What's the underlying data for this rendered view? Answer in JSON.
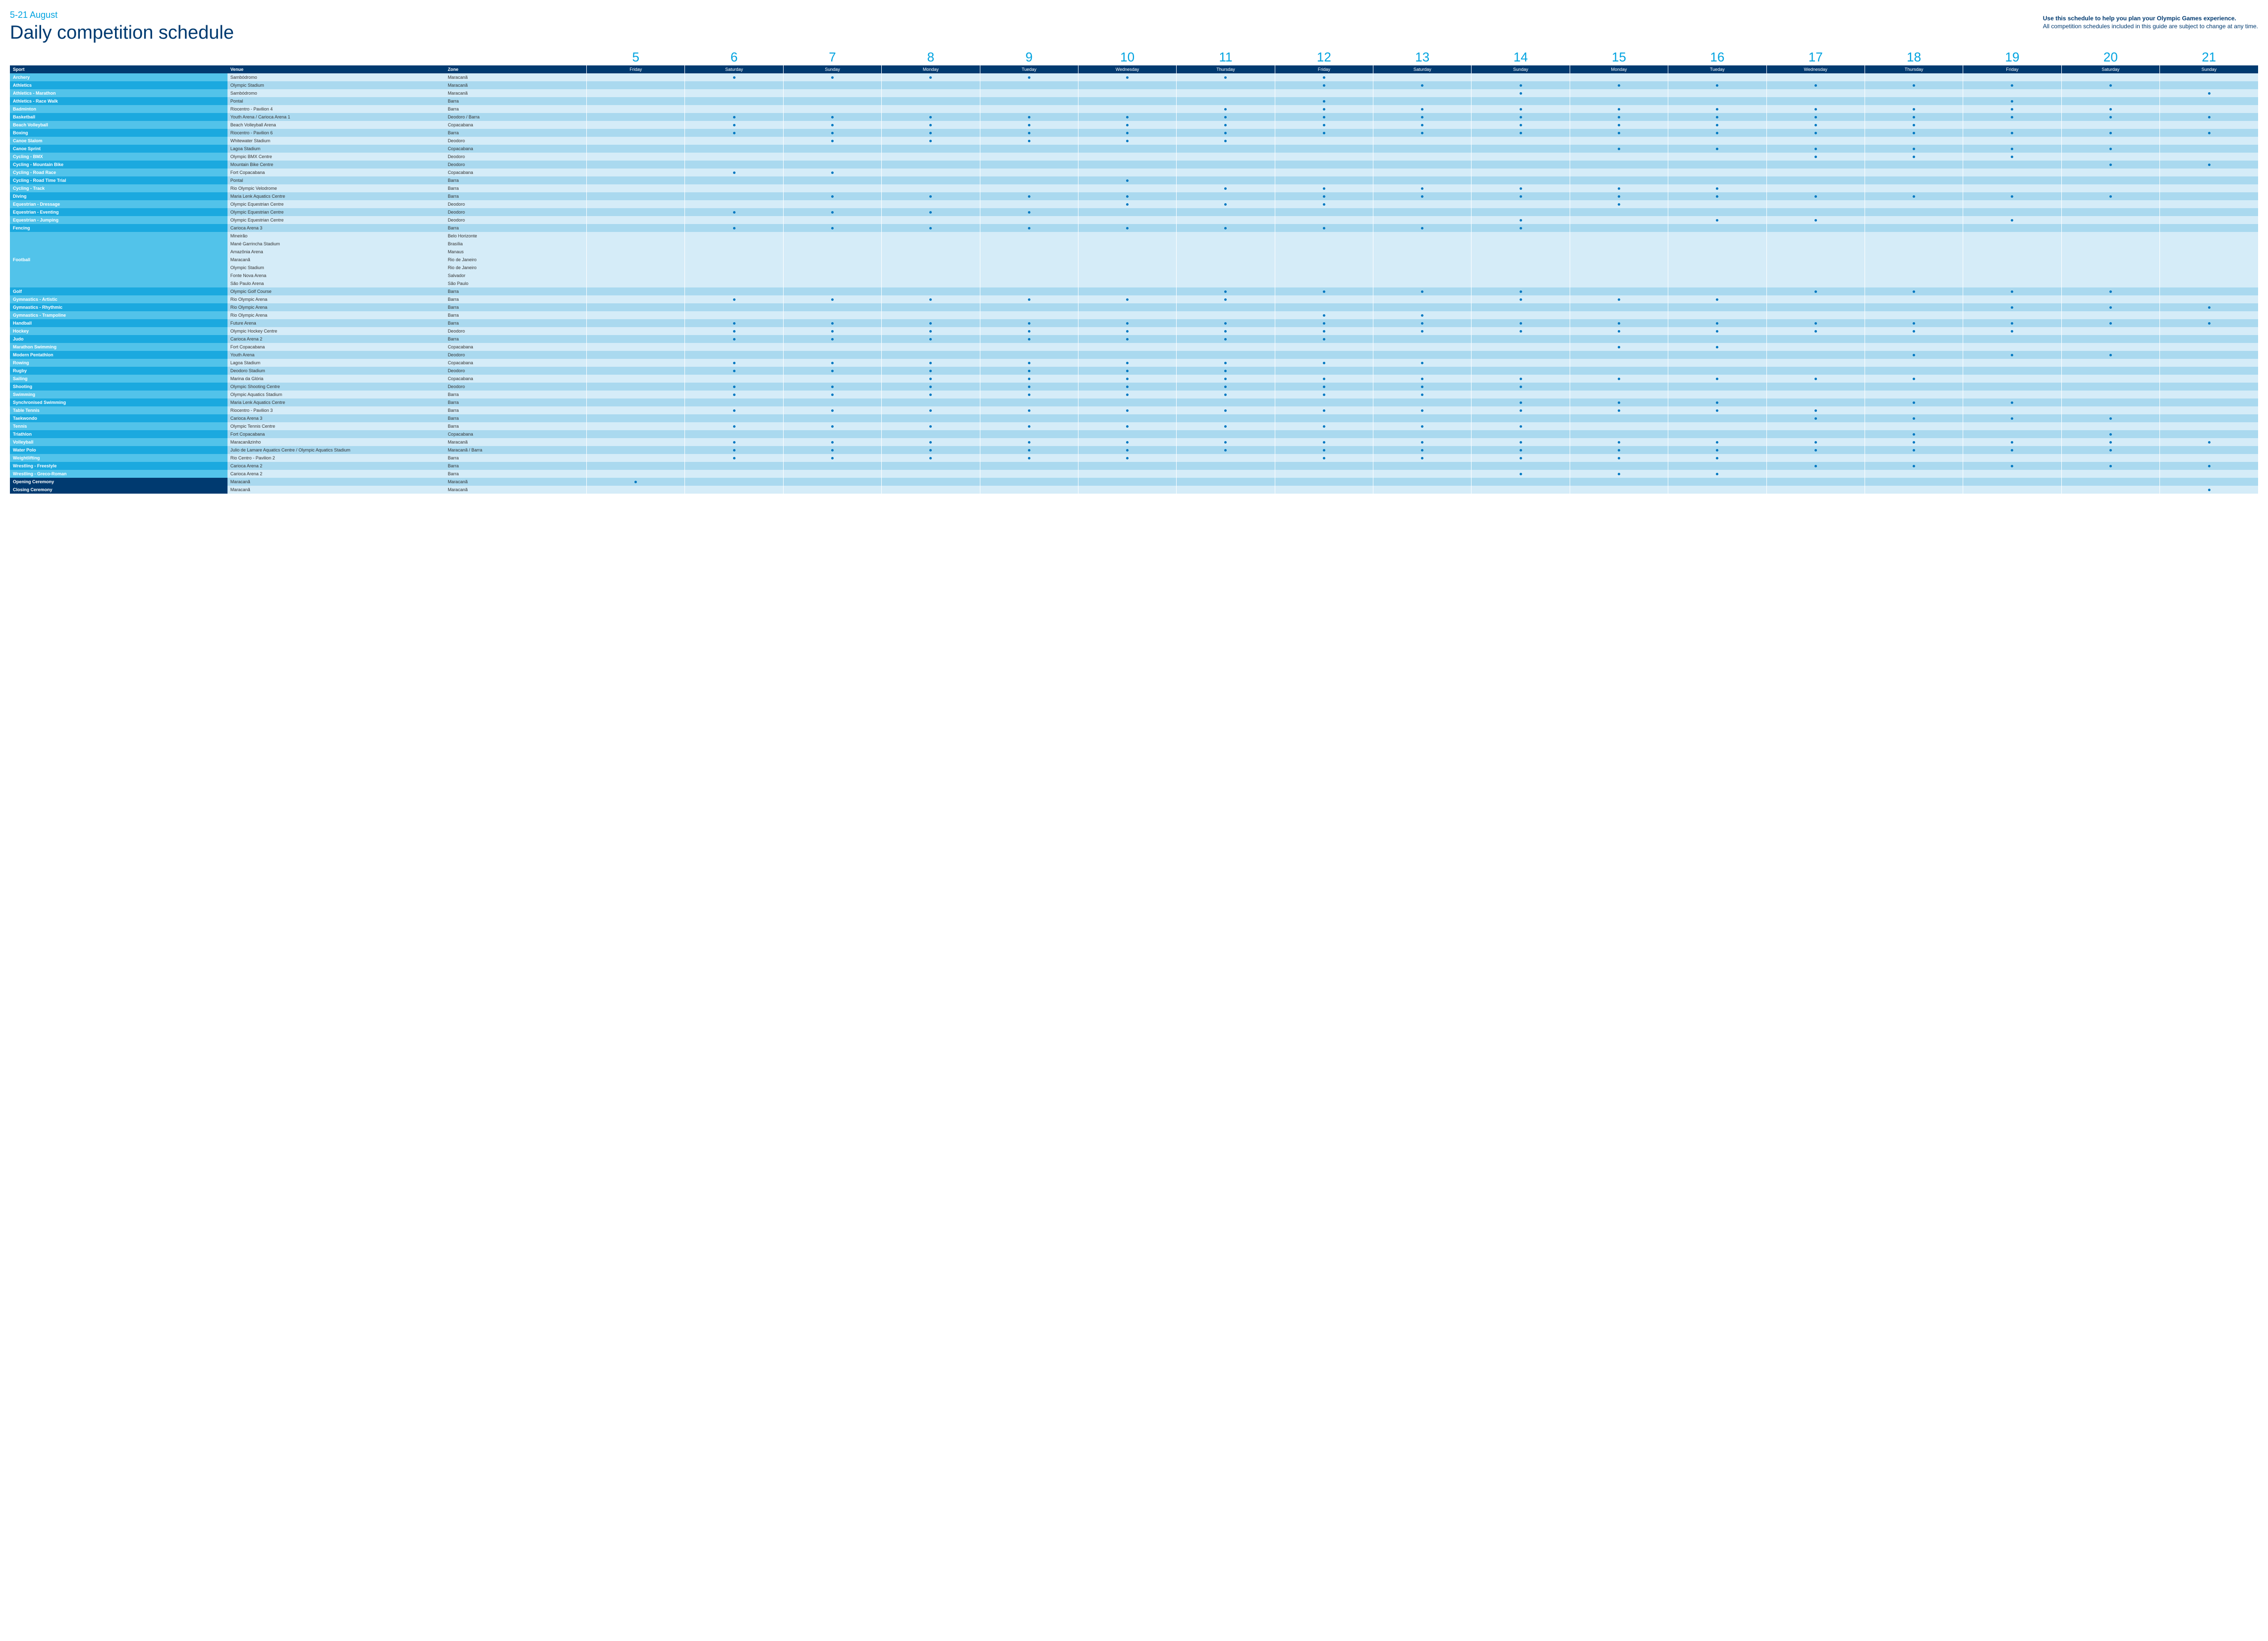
{
  "header": {
    "dateRange": "5-21 August",
    "title": "Daily competition schedule",
    "helpText1": "Use this schedule to help you plan your Olympic Games experience.",
    "helpText2": "All competition schedules included in this guide are subject to change at any time."
  },
  "columns": {
    "sport": "Sport",
    "venue": "Venue",
    "zone": "Zone"
  },
  "days": [
    {
      "num": "5",
      "name": "Friday"
    },
    {
      "num": "6",
      "name": "Saturday"
    },
    {
      "num": "7",
      "name": "Sunday"
    },
    {
      "num": "8",
      "name": "Monday"
    },
    {
      "num": "9",
      "name": "Tueday"
    },
    {
      "num": "10",
      "name": "Wednesday"
    },
    {
      "num": "11",
      "name": "Thursday"
    },
    {
      "num": "12",
      "name": "Friday"
    },
    {
      "num": "13",
      "name": "Saturday"
    },
    {
      "num": "14",
      "name": "Sunday"
    },
    {
      "num": "15",
      "name": "Monday"
    },
    {
      "num": "16",
      "name": "Tueday"
    },
    {
      "num": "17",
      "name": "Wednesday"
    },
    {
      "num": "18",
      "name": "Thursday"
    },
    {
      "num": "19",
      "name": "Friday"
    },
    {
      "num": "20",
      "name": "Saturday"
    },
    {
      "num": "21",
      "name": "Sunday"
    }
  ],
  "rows": [
    {
      "sport": "Archery",
      "venue": "Sambódromo",
      "zone": "Maracanã",
      "dots": [
        0,
        1,
        1,
        1,
        1,
        1,
        1,
        1,
        0,
        0,
        0,
        0,
        0,
        0,
        0,
        0,
        0
      ]
    },
    {
      "sport": "Athletics",
      "venue": "Olympic Stadium",
      "zone": "Maracanã",
      "dots": [
        0,
        0,
        0,
        0,
        0,
        0,
        0,
        1,
        1,
        1,
        1,
        1,
        1,
        1,
        1,
        1,
        0
      ]
    },
    {
      "sport": "Athletics - Marathon",
      "venue": "Sambódromo",
      "zone": "Maracanã",
      "dots": [
        0,
        0,
        0,
        0,
        0,
        0,
        0,
        0,
        0,
        1,
        0,
        0,
        0,
        0,
        0,
        0,
        1
      ]
    },
    {
      "sport": "Athletics - Race Walk",
      "venue": "Pontal",
      "zone": "Barra",
      "dots": [
        0,
        0,
        0,
        0,
        0,
        0,
        0,
        1,
        0,
        0,
        0,
        0,
        0,
        0,
        1,
        0,
        0
      ]
    },
    {
      "sport": "Badminton",
      "venue": "Riocentro - Pavilion 4",
      "zone": "Barra",
      "dots": [
        0,
        0,
        0,
        0,
        0,
        0,
        1,
        1,
        1,
        1,
        1,
        1,
        1,
        1,
        1,
        1,
        0
      ]
    },
    {
      "sport": "Basketball",
      "venue": "Youth Arena / Carioca Arena 1",
      "zone": "Deodoro / Barra",
      "dots": [
        0,
        1,
        1,
        1,
        1,
        1,
        1,
        1,
        1,
        1,
        1,
        1,
        1,
        1,
        1,
        1,
        1
      ]
    },
    {
      "sport": "Beach Volleyball",
      "venue": "Beach Volleyball Arena",
      "zone": "Copacabana",
      "dots": [
        0,
        1,
        1,
        1,
        1,
        1,
        1,
        1,
        1,
        1,
        1,
        1,
        1,
        1,
        0,
        0,
        0
      ]
    },
    {
      "sport": "Boxing",
      "venue": "Riocentro - Pavilion 6",
      "zone": "Barra",
      "dots": [
        0,
        1,
        1,
        1,
        1,
        1,
        1,
        1,
        1,
        1,
        1,
        1,
        1,
        1,
        1,
        1,
        1
      ]
    },
    {
      "sport": "Canoe Slalom",
      "venue": "Whitewater Stadium",
      "zone": "Deodoro",
      "dots": [
        0,
        0,
        1,
        1,
        1,
        1,
        1,
        0,
        0,
        0,
        0,
        0,
        0,
        0,
        0,
        0,
        0
      ]
    },
    {
      "sport": "Canoe Sprint",
      "venue": "Lagoa Stadium",
      "zone": "Copacabana",
      "dots": [
        0,
        0,
        0,
        0,
        0,
        0,
        0,
        0,
        0,
        0,
        1,
        1,
        1,
        1,
        1,
        1,
        0
      ]
    },
    {
      "sport": "Cycling - BMX",
      "venue": "Olympic BMX Centre",
      "zone": "Deodoro",
      "dots": [
        0,
        0,
        0,
        0,
        0,
        0,
        0,
        0,
        0,
        0,
        0,
        0,
        1,
        1,
        1,
        0,
        0
      ]
    },
    {
      "sport": "Cycling - Mountain Bike",
      "venue": "Mountain Bike Centre",
      "zone": "Deodoro",
      "dots": [
        0,
        0,
        0,
        0,
        0,
        0,
        0,
        0,
        0,
        0,
        0,
        0,
        0,
        0,
        0,
        1,
        1
      ]
    },
    {
      "sport": "Cycling - Road Race",
      "venue": "Fort Copacabana",
      "zone": "Copacabana",
      "dots": [
        0,
        1,
        1,
        0,
        0,
        0,
        0,
        0,
        0,
        0,
        0,
        0,
        0,
        0,
        0,
        0,
        0
      ]
    },
    {
      "sport": "Cycling - Road Time Trial",
      "venue": "Pontal",
      "zone": "Barra",
      "dots": [
        0,
        0,
        0,
        0,
        0,
        1,
        0,
        0,
        0,
        0,
        0,
        0,
        0,
        0,
        0,
        0,
        0
      ]
    },
    {
      "sport": "Cycling - Track",
      "venue": "Rio Olympic Velodrome",
      "zone": "Barra",
      "dots": [
        0,
        0,
        0,
        0,
        0,
        0,
        1,
        1,
        1,
        1,
        1,
        1,
        0,
        0,
        0,
        0,
        0
      ]
    },
    {
      "sport": "Diving",
      "venue": "Maria Lenk Aquatics Centre",
      "zone": "Barra",
      "dots": [
        0,
        0,
        1,
        1,
        1,
        1,
        0,
        1,
        1,
        1,
        1,
        1,
        1,
        1,
        1,
        1,
        0
      ]
    },
    {
      "sport": "Equestrian - Dressage",
      "venue": "Olympic Equestrian Centre",
      "zone": "Deodoro",
      "dots": [
        0,
        0,
        0,
        0,
        0,
        1,
        1,
        1,
        0,
        0,
        1,
        0,
        0,
        0,
        0,
        0,
        0
      ]
    },
    {
      "sport": "Equestrian - Eventing",
      "venue": "Olympic Equestrian Centre",
      "zone": "Deodoro",
      "dots": [
        0,
        1,
        1,
        1,
        1,
        0,
        0,
        0,
        0,
        0,
        0,
        0,
        0,
        0,
        0,
        0,
        0
      ]
    },
    {
      "sport": "Equestrian - Jumping",
      "venue": "Olympic Equestrian Centre",
      "zone": "Deodoro",
      "dots": [
        0,
        0,
        0,
        0,
        0,
        0,
        0,
        0,
        0,
        1,
        0,
        1,
        1,
        0,
        1,
        0,
        0
      ]
    },
    {
      "sport": "Fencing",
      "venue": "Carioca Arena 3",
      "zone": "Barra",
      "dots": [
        0,
        1,
        1,
        1,
        1,
        1,
        1,
        1,
        1,
        1,
        0,
        0,
        0,
        0,
        0,
        0,
        0
      ]
    },
    {
      "sport": "",
      "venue": "Mineirão",
      "zone": "Belo Horizonte",
      "dots": [
        0,
        0,
        0,
        0,
        0,
        0,
        0,
        0,
        0,
        0,
        0,
        0,
        0,
        0,
        0,
        0,
        0
      ],
      "group": "Football",
      "first": true
    },
    {
      "sport": "",
      "venue": "Mané Garrincha Stadium",
      "zone": "Brasília",
      "dots": [
        0,
        0,
        0,
        0,
        0,
        0,
        0,
        0,
        0,
        0,
        0,
        0,
        0,
        0,
        0,
        0,
        0
      ],
      "group": "Football"
    },
    {
      "sport": "",
      "venue": "Amazônia Arena",
      "zone": "Manaus",
      "dots": [
        0,
        0,
        0,
        0,
        0,
        0,
        0,
        0,
        0,
        0,
        0,
        0,
        0,
        0,
        0,
        0,
        0
      ],
      "group": "Football"
    },
    {
      "sport": "Football",
      "venue": "Maracanã",
      "zone": "Rio de Janeiro",
      "dots": [
        0,
        0,
        0,
        0,
        0,
        0,
        0,
        0,
        0,
        0,
        0,
        0,
        0,
        0,
        0,
        0,
        0
      ],
      "group": "Football",
      "showLabel": true
    },
    {
      "sport": "",
      "venue": "Olympic Stadium",
      "zone": "Rio de Janeiro",
      "dots": [
        0,
        0,
        0,
        0,
        0,
        0,
        0,
        0,
        0,
        0,
        0,
        0,
        0,
        0,
        0,
        0,
        0
      ],
      "group": "Football"
    },
    {
      "sport": "",
      "venue": "Fonte Nova Arena",
      "zone": "Salvador",
      "dots": [
        0,
        0,
        0,
        0,
        0,
        0,
        0,
        0,
        0,
        0,
        0,
        0,
        0,
        0,
        0,
        0,
        0
      ],
      "group": "Football"
    },
    {
      "sport": "",
      "venue": "São Paulo Arena",
      "zone": "São Paulo",
      "dots": [
        0,
        0,
        0,
        0,
        0,
        0,
        0,
        0,
        0,
        0,
        0,
        0,
        0,
        0,
        0,
        0,
        0
      ],
      "group": "Football",
      "last": true
    },
    {
      "sport": "Golf",
      "venue": "Olympic Golf Course",
      "zone": "Barra",
      "dots": [
        0,
        0,
        0,
        0,
        0,
        0,
        1,
        1,
        1,
        1,
        0,
        0,
        1,
        1,
        1,
        1,
        0
      ]
    },
    {
      "sport": "Gymnastics - Artistic",
      "venue": "Rio Olympic Arena",
      "zone": "Barra",
      "dots": [
        0,
        1,
        1,
        1,
        1,
        1,
        1,
        0,
        0,
        1,
        1,
        1,
        0,
        0,
        0,
        0,
        0
      ]
    },
    {
      "sport": "Gymnastics - Rhythmic",
      "venue": "Rio Olympic Arena",
      "zone": "Barra",
      "dots": [
        0,
        0,
        0,
        0,
        0,
        0,
        0,
        0,
        0,
        0,
        0,
        0,
        0,
        0,
        1,
        1,
        1
      ]
    },
    {
      "sport": "Gymnastics - Trampoline",
      "venue": "Rio Olympic Arena",
      "zone": "Barra",
      "dots": [
        0,
        0,
        0,
        0,
        0,
        0,
        0,
        1,
        1,
        0,
        0,
        0,
        0,
        0,
        0,
        0,
        0
      ]
    },
    {
      "sport": "Handball",
      "venue": "Future Arena",
      "zone": "Barra",
      "dots": [
        0,
        1,
        1,
        1,
        1,
        1,
        1,
        1,
        1,
        1,
        1,
        1,
        1,
        1,
        1,
        1,
        1
      ]
    },
    {
      "sport": "Hockey",
      "venue": "Olympic Hockey Centre",
      "zone": "Deodoro",
      "dots": [
        0,
        1,
        1,
        1,
        1,
        1,
        1,
        1,
        1,
        1,
        1,
        1,
        1,
        1,
        1,
        0,
        0
      ]
    },
    {
      "sport": "Judo",
      "venue": "Carioca Arena 2",
      "zone": "Barra",
      "dots": [
        0,
        1,
        1,
        1,
        1,
        1,
        1,
        1,
        0,
        0,
        0,
        0,
        0,
        0,
        0,
        0,
        0
      ]
    },
    {
      "sport": "Marathon Swimming",
      "venue": "Fort Copacabana",
      "zone": "Copacabana",
      "dots": [
        0,
        0,
        0,
        0,
        0,
        0,
        0,
        0,
        0,
        0,
        1,
        1,
        0,
        0,
        0,
        0,
        0
      ]
    },
    {
      "sport": "Modern Pentathlon",
      "venue": "Youth Arena",
      "zone": "Deodoro",
      "dots": [
        0,
        0,
        0,
        0,
        0,
        0,
        0,
        0,
        0,
        0,
        0,
        0,
        0,
        1,
        1,
        1,
        0
      ]
    },
    {
      "sport": "Rowing",
      "venue": "Lagoa Stadium",
      "zone": "Copacabana",
      "dots": [
        0,
        1,
        1,
        1,
        1,
        1,
        1,
        1,
        1,
        0,
        0,
        0,
        0,
        0,
        0,
        0,
        0
      ]
    },
    {
      "sport": "Rugby",
      "venue": "Deodoro Stadium",
      "zone": "Deodoro",
      "dots": [
        0,
        1,
        1,
        1,
        1,
        1,
        1,
        0,
        0,
        0,
        0,
        0,
        0,
        0,
        0,
        0,
        0
      ]
    },
    {
      "sport": "Sailing",
      "venue": "Marina da Glória",
      "zone": "Copacabana",
      "dots": [
        0,
        0,
        0,
        1,
        1,
        1,
        1,
        1,
        1,
        1,
        1,
        1,
        1,
        1,
        0,
        0,
        0
      ]
    },
    {
      "sport": "Shooting",
      "venue": "Olympic Shooting Centre",
      "zone": "Deodoro",
      "dots": [
        0,
        1,
        1,
        1,
        1,
        1,
        1,
        1,
        1,
        1,
        0,
        0,
        0,
        0,
        0,
        0,
        0
      ]
    },
    {
      "sport": "Swimming",
      "venue": "Olympic Aquatics Stadium",
      "zone": "Barra",
      "dots": [
        0,
        1,
        1,
        1,
        1,
        1,
        1,
        1,
        1,
        0,
        0,
        0,
        0,
        0,
        0,
        0,
        0
      ]
    },
    {
      "sport": "Synchronised Swimming",
      "venue": "Maria Lenk Aquatics Centre",
      "zone": "Barra",
      "dots": [
        0,
        0,
        0,
        0,
        0,
        0,
        0,
        0,
        0,
        1,
        1,
        1,
        0,
        1,
        1,
        0,
        0
      ]
    },
    {
      "sport": "Table Tennis",
      "venue": "Riocentro - Pavilion 3",
      "zone": "Barra",
      "dots": [
        0,
        1,
        1,
        1,
        1,
        1,
        1,
        1,
        1,
        1,
        1,
        1,
        1,
        0,
        0,
        0,
        0
      ]
    },
    {
      "sport": "Taekwondo",
      "venue": "Carioca Arena 3",
      "zone": "Barra",
      "dots": [
        0,
        0,
        0,
        0,
        0,
        0,
        0,
        0,
        0,
        0,
        0,
        0,
        1,
        1,
        1,
        1,
        0
      ]
    },
    {
      "sport": "Tennis",
      "venue": "Olympic Tennis Centre",
      "zone": "Barra",
      "dots": [
        0,
        1,
        1,
        1,
        1,
        1,
        1,
        1,
        1,
        1,
        0,
        0,
        0,
        0,
        0,
        0,
        0
      ]
    },
    {
      "sport": "Triathlon",
      "venue": "Fort Copacabana",
      "zone": "Copacabana",
      "dots": [
        0,
        0,
        0,
        0,
        0,
        0,
        0,
        0,
        0,
        0,
        0,
        0,
        0,
        1,
        0,
        1,
        0
      ]
    },
    {
      "sport": "Volleyball",
      "venue": "Maracanãzinho",
      "zone": "Maracanã",
      "dots": [
        0,
        1,
        1,
        1,
        1,
        1,
        1,
        1,
        1,
        1,
        1,
        1,
        1,
        1,
        1,
        1,
        1
      ]
    },
    {
      "sport": "Water Polo",
      "venue": "Julio de Lamare Aquatics Centre / Olympic Aquatics Stadium",
      "zone": "Maracanã / Barra",
      "dots": [
        0,
        1,
        1,
        1,
        1,
        1,
        1,
        1,
        1,
        1,
        1,
        1,
        1,
        1,
        1,
        1,
        0
      ]
    },
    {
      "sport": "Weightlifting",
      "venue": "Rio Centro - Pavilion 2",
      "zone": "Barra",
      "dots": [
        0,
        1,
        1,
        1,
        1,
        1,
        0,
        1,
        1,
        1,
        1,
        1,
        0,
        0,
        0,
        0,
        0
      ]
    },
    {
      "sport": "Wrestling - Freestyle",
      "venue": "Carioca Arena 2",
      "zone": "Barra",
      "dots": [
        0,
        0,
        0,
        0,
        0,
        0,
        0,
        0,
        0,
        0,
        0,
        0,
        1,
        1,
        1,
        1,
        1
      ]
    },
    {
      "sport": "Wrestling - Greco-Roman",
      "venue": "Carioca Arena 2",
      "zone": "Barra",
      "dots": [
        0,
        0,
        0,
        0,
        0,
        0,
        0,
        0,
        0,
        1,
        1,
        1,
        0,
        0,
        0,
        0,
        0
      ]
    },
    {
      "sport": "Opening Ceremony",
      "venue": "Maracanã",
      "zone": "Maracanã",
      "dots": [
        1,
        0,
        0,
        0,
        0,
        0,
        0,
        0,
        0,
        0,
        0,
        0,
        0,
        0,
        0,
        0,
        0
      ],
      "ceremony": true
    },
    {
      "sport": "Closing Ceremony",
      "venue": "Maracanã",
      "zone": "Maracanã",
      "dots": [
        0,
        0,
        0,
        0,
        0,
        0,
        0,
        0,
        0,
        0,
        0,
        0,
        0,
        0,
        0,
        0,
        1
      ],
      "ceremony": true
    }
  ],
  "styling": {
    "colors": {
      "darkBlue": "#003a70",
      "cyan": "#00a3e0",
      "sportLight": "#52c3ea",
      "sportDark": "#1ba9df",
      "rowLight": "#d5ecf8",
      "rowDark": "#aad9ef",
      "dot": "#0077c0"
    },
    "fontSizes": {
      "title": 38,
      "dateRange": 18,
      "dayNum": 26,
      "cell": 9
    }
  }
}
